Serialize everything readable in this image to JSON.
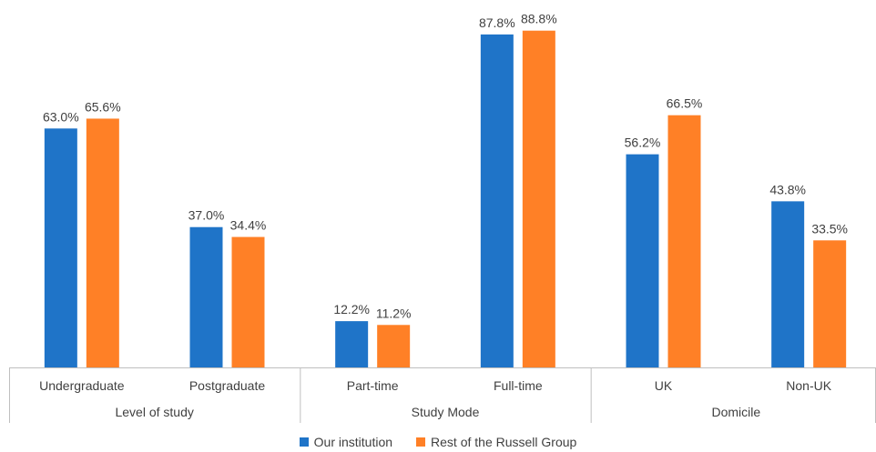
{
  "chart_data": {
    "type": "bar",
    "title": "",
    "xlabel": "",
    "ylabel": "",
    "ylim": [
      0,
      100
    ],
    "grid": false,
    "legend_position": "bottom",
    "groups": [
      {
        "label": "Level of study",
        "categories": [
          "Undergraduate",
          "Postgraduate"
        ]
      },
      {
        "label": "Study Mode",
        "categories": [
          "Part-time",
          "Full-time"
        ]
      },
      {
        "label": "Domicile",
        "categories": [
          "UK",
          "Non-UK"
        ]
      }
    ],
    "categories": [
      "Undergraduate",
      "Postgraduate",
      "Part-time",
      "Full-time",
      "UK",
      "Non-UK"
    ],
    "series": [
      {
        "name": "Our institution",
        "color": "#1F74C8",
        "values": [
          63.0,
          37.0,
          12.2,
          87.8,
          56.2,
          43.8
        ],
        "labels": [
          "63.0%",
          "37.0%",
          "12.2%",
          "87.8%",
          "56.2%",
          "43.8%"
        ]
      },
      {
        "name": "Rest of the Russell Group",
        "color": "#FF8026",
        "values": [
          65.6,
          34.4,
          11.2,
          88.8,
          66.5,
          33.5
        ],
        "labels": [
          "65.6%",
          "34.4%",
          "11.2%",
          "88.8%",
          "66.5%",
          "33.5%"
        ]
      }
    ]
  }
}
